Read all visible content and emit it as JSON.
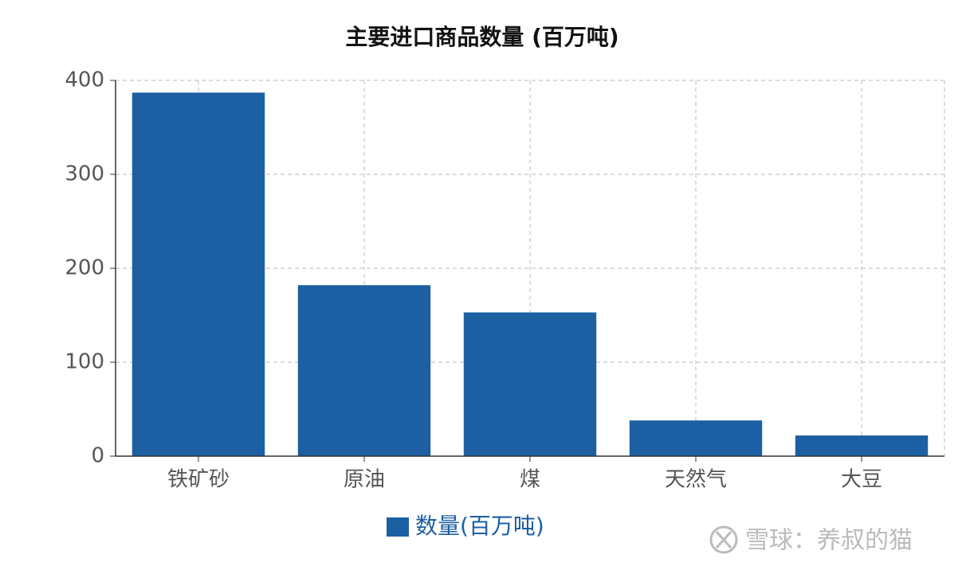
{
  "chart_data": {
    "type": "bar",
    "title": "主要进口商品数量 (百万吨)",
    "categories": [
      "铁矿砂",
      "原油",
      "煤",
      "天然气",
      "大豆"
    ],
    "series": [
      {
        "name": "数量(百万吨)",
        "color": "#1c5fa3",
        "values": [
          387,
          182,
          153,
          38,
          22
        ]
      }
    ],
    "ylim": [
      0,
      400
    ],
    "yticks": [
      0,
      100,
      200,
      300,
      400
    ],
    "grid": true,
    "legend": "bottom",
    "watermark": "雪球：养叔的猫"
  }
}
